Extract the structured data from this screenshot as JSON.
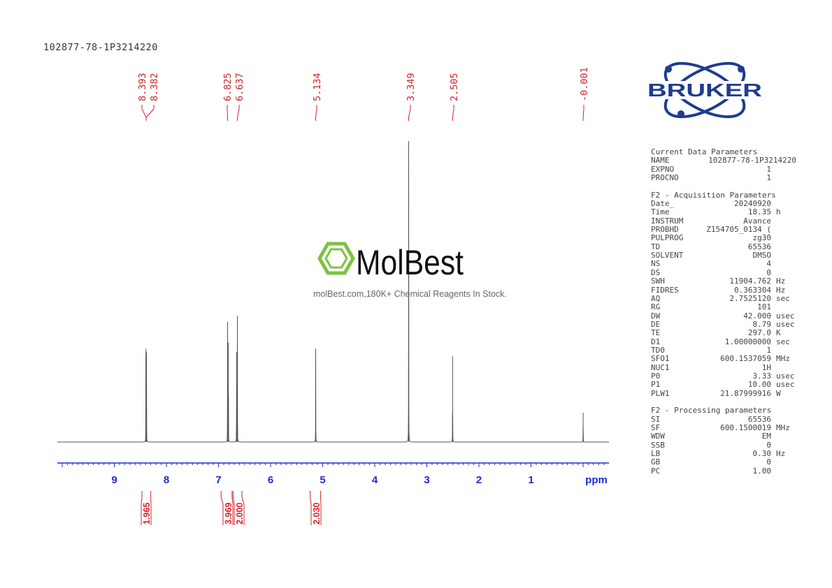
{
  "title": "102877-78-1P3214220",
  "logo": {
    "text": "BRUKER",
    "color": "#1f3c8f"
  },
  "watermark": {
    "text": "MolBest",
    "subtitle": "molBest.com,180K+ Chemical Reagents In Stock.",
    "color": "#7dc242"
  },
  "colors": {
    "spectrum": "#555555",
    "axis": "#1f2ccc",
    "labels": "#d2232a"
  },
  "chart_data": {
    "type": "line",
    "xlabel": "ppm",
    "xlim": [
      10.05,
      -0.5
    ],
    "x_reversed": true,
    "xticks": [
      "9",
      "8",
      "7",
      "6",
      "5",
      "4",
      "3",
      "2",
      "1"
    ],
    "peaks": [
      {
        "ppm": 8.393,
        "height": 0.31
      },
      {
        "ppm": 8.382,
        "height": 0.3
      },
      {
        "ppm": 6.825,
        "height": 0.4
      },
      {
        "ppm": 6.81,
        "height": 0.33
      },
      {
        "ppm": 6.652,
        "height": 0.3
      },
      {
        "ppm": 6.637,
        "height": 0.42
      },
      {
        "ppm": 5.134,
        "height": 0.31
      },
      {
        "ppm": 3.349,
        "height": 1.0
      },
      {
        "ppm": 2.505,
        "height": 0.285
      },
      {
        "ppm": -0.001,
        "height": 0.097
      }
    ],
    "peak_labels": [
      {
        "text": "8.393",
        "ppm": 8.393
      },
      {
        "text": "8.382",
        "ppm": 8.382
      },
      {
        "text": "6.825",
        "ppm": 6.825
      },
      {
        "text": "6.637",
        "ppm": 6.637
      },
      {
        "text": "5.134",
        "ppm": 5.134
      },
      {
        "text": "3.349",
        "ppm": 3.349
      },
      {
        "text": "2.505",
        "ppm": 2.505
      },
      {
        "text": "-0.001",
        "ppm": -0.001
      }
    ],
    "integrals": [
      {
        "text": "1.965",
        "from": 8.47,
        "to": 8.3
      },
      {
        "text": "3.969",
        "from": 6.95,
        "to": 6.74
      },
      {
        "text": "2.000",
        "from": 6.72,
        "to": 6.55
      },
      {
        "text": "2.030",
        "from": 5.24,
        "to": 5.04
      }
    ]
  },
  "params": [
    {
      "header": "Current Data Parameters",
      "rows": [
        [
          "NAME",
          "102877-78-1P3214220",
          ""
        ],
        [
          "EXPNO",
          "1",
          ""
        ],
        [
          "PROCNO",
          "1",
          ""
        ]
      ]
    },
    {
      "header": "F2 - Acquisition Parameters",
      "rows": [
        [
          "Date_",
          "20240920",
          ""
        ],
        [
          "Time",
          "18.35",
          "h"
        ],
        [
          "INSTRUM",
          "Avance",
          ""
        ],
        [
          "PROBHD",
          "Z154705_0134 (",
          ""
        ],
        [
          "PULPROG",
          "zg30",
          ""
        ],
        [
          "TD",
          "65536",
          ""
        ],
        [
          "SOLVENT",
          "DMSO",
          ""
        ],
        [
          "NS",
          "4",
          ""
        ],
        [
          "DS",
          "0",
          ""
        ],
        [
          "SWH",
          "11904.762",
          "Hz"
        ],
        [
          "FIDRES",
          "0.363304",
          "Hz"
        ],
        [
          "AQ",
          "2.7525120",
          "sec"
        ],
        [
          "RG",
          "101",
          ""
        ],
        [
          "DW",
          "42.000",
          "usec"
        ],
        [
          "DE",
          "8.79",
          "usec"
        ],
        [
          "TE",
          "297.0",
          "K"
        ],
        [
          "D1",
          "1.00000000",
          "sec"
        ],
        [
          "TD0",
          "1",
          ""
        ],
        [
          "SFO1",
          "600.1537059",
          "MHz"
        ],
        [
          "NUC1",
          "1H",
          ""
        ],
        [
          "P0",
          "3.33",
          "usec"
        ],
        [
          "P1",
          "10.00",
          "usec"
        ],
        [
          "PLW1",
          "21.87999916",
          "W"
        ]
      ]
    },
    {
      "header": "F2 - Processing parameters",
      "rows": [
        [
          "SI",
          "65536",
          ""
        ],
        [
          "SF",
          "600.1500019",
          "MHz"
        ],
        [
          "WDW",
          "EM",
          ""
        ],
        [
          "SSB",
          "0",
          ""
        ],
        [
          "LB",
          "0.30",
          "Hz"
        ],
        [
          "GB",
          "0",
          ""
        ],
        [
          "PC",
          "1.00",
          ""
        ]
      ]
    }
  ]
}
